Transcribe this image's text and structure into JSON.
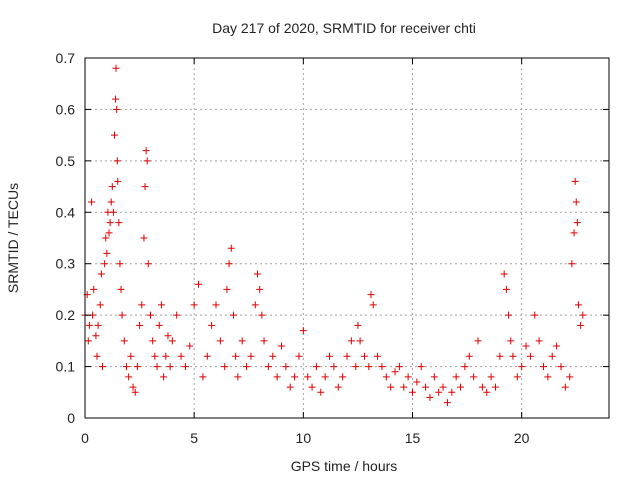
{
  "chart_data": {
    "type": "scatter",
    "title": "Day 217 of 2020, SRMTID for receiver chti",
    "xlabel": "GPS time / hours",
    "ylabel": "SRMTID / TECUs",
    "xlim": [
      0,
      24
    ],
    "ylim": [
      0,
      0.7
    ],
    "x_ticks": [
      0,
      5,
      10,
      15,
      20
    ],
    "y_ticks": [
      0,
      0.1,
      0.2,
      0.3,
      0.4,
      0.5,
      0.6,
      0.7
    ],
    "grid": true,
    "marker": "+",
    "series": [
      {
        "name": "SRMTID",
        "color": "#e00000",
        "x": [
          0.0,
          0.1,
          0.15,
          0.2,
          0.3,
          0.35,
          0.4,
          0.5,
          0.55,
          0.6,
          0.7,
          0.75,
          0.8,
          0.9,
          0.95,
          1.0,
          1.05,
          1.1,
          1.15,
          1.2,
          1.25,
          1.3,
          1.35,
          1.4,
          1.42,
          1.45,
          1.48,
          1.5,
          1.55,
          1.6,
          1.65,
          1.7,
          1.8,
          1.9,
          2.0,
          2.1,
          2.2,
          2.3,
          2.4,
          2.5,
          2.6,
          2.7,
          2.75,
          2.8,
          2.85,
          2.9,
          3.0,
          3.1,
          3.2,
          3.3,
          3.4,
          3.5,
          3.6,
          3.7,
          3.8,
          3.9,
          4.0,
          4.2,
          4.4,
          4.6,
          4.8,
          5.0,
          5.2,
          5.4,
          5.6,
          5.8,
          6.0,
          6.2,
          6.4,
          6.5,
          6.6,
          6.7,
          6.8,
          6.9,
          7.0,
          7.2,
          7.4,
          7.6,
          7.8,
          7.9,
          8.0,
          8.1,
          8.2,
          8.4,
          8.6,
          8.8,
          9.0,
          9.2,
          9.4,
          9.6,
          9.8,
          10.0,
          10.2,
          10.4,
          10.6,
          10.8,
          11.0,
          11.2,
          11.4,
          11.6,
          11.8,
          12.0,
          12.2,
          12.4,
          12.5,
          12.6,
          12.8,
          13.0,
          13.1,
          13.2,
          13.4,
          13.6,
          13.8,
          14.0,
          14.2,
          14.4,
          14.6,
          14.8,
          15.0,
          15.2,
          15.4,
          15.6,
          15.8,
          16.0,
          16.2,
          16.4,
          16.6,
          16.8,
          17.0,
          17.2,
          17.4,
          17.6,
          17.8,
          18.0,
          18.2,
          18.4,
          18.6,
          18.8,
          19.0,
          19.2,
          19.3,
          19.4,
          19.5,
          19.6,
          19.8,
          20.0,
          20.2,
          20.4,
          20.6,
          20.8,
          21.0,
          21.2,
          21.4,
          21.6,
          21.8,
          22.0,
          22.2,
          22.3,
          22.4,
          22.45,
          22.5,
          22.55,
          22.6,
          22.7,
          22.8
        ],
        "y": [
          0.2,
          0.24,
          0.15,
          0.18,
          0.42,
          0.2,
          0.25,
          0.16,
          0.12,
          0.18,
          0.22,
          0.28,
          0.1,
          0.3,
          0.35,
          0.32,
          0.4,
          0.36,
          0.38,
          0.42,
          0.45,
          0.4,
          0.55,
          0.62,
          0.68,
          0.6,
          0.5,
          0.46,
          0.38,
          0.3,
          0.25,
          0.2,
          0.15,
          0.1,
          0.08,
          0.12,
          0.06,
          0.05,
          0.1,
          0.18,
          0.22,
          0.35,
          0.45,
          0.52,
          0.5,
          0.3,
          0.2,
          0.15,
          0.12,
          0.1,
          0.18,
          0.22,
          0.08,
          0.12,
          0.16,
          0.1,
          0.15,
          0.2,
          0.12,
          0.1,
          0.14,
          0.22,
          0.26,
          0.08,
          0.12,
          0.18,
          0.22,
          0.15,
          0.1,
          0.25,
          0.3,
          0.33,
          0.2,
          0.12,
          0.08,
          0.15,
          0.1,
          0.12,
          0.22,
          0.28,
          0.25,
          0.2,
          0.15,
          0.1,
          0.12,
          0.08,
          0.14,
          0.1,
          0.06,
          0.08,
          0.12,
          0.17,
          0.08,
          0.06,
          0.1,
          0.05,
          0.08,
          0.12,
          0.1,
          0.06,
          0.08,
          0.12,
          0.15,
          0.1,
          0.18,
          0.15,
          0.12,
          0.1,
          0.24,
          0.22,
          0.12,
          0.1,
          0.08,
          0.06,
          0.09,
          0.1,
          0.06,
          0.08,
          0.05,
          0.07,
          0.1,
          0.06,
          0.04,
          0.08,
          0.05,
          0.06,
          0.03,
          0.05,
          0.08,
          0.06,
          0.1,
          0.12,
          0.08,
          0.15,
          0.06,
          0.05,
          0.08,
          0.06,
          0.12,
          0.28,
          0.25,
          0.2,
          0.15,
          0.12,
          0.08,
          0.1,
          0.14,
          0.12,
          0.2,
          0.15,
          0.1,
          0.08,
          0.12,
          0.14,
          0.1,
          0.06,
          0.08,
          0.3,
          0.36,
          0.46,
          0.42,
          0.38,
          0.22,
          0.18,
          0.2
        ]
      }
    ]
  }
}
